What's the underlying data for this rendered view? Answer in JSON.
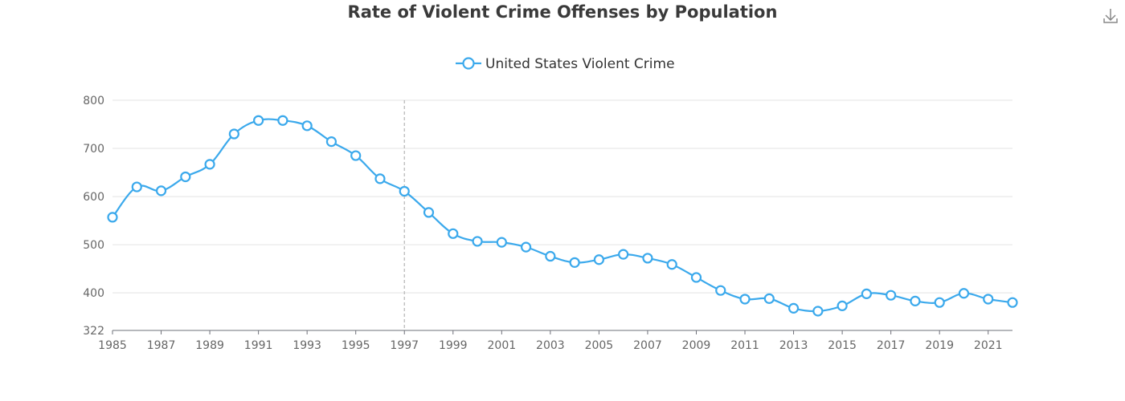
{
  "colors": {
    "series": "#3ba9ec",
    "download_icon": "#888888"
  },
  "toolbox": {
    "download_icon": "download-icon"
  },
  "chart_data": {
    "type": "line",
    "title": "Rate of Violent Crime Offenses by Population",
    "xlabel": "",
    "ylabel": "",
    "x": [
      1985,
      1986,
      1987,
      1988,
      1989,
      1990,
      1991,
      1992,
      1993,
      1994,
      1995,
      1996,
      1997,
      1998,
      1999,
      2000,
      2001,
      2002,
      2003,
      2004,
      2005,
      2006,
      2007,
      2008,
      2009,
      2010,
      2011,
      2012,
      2013,
      2014,
      2015,
      2016,
      2017,
      2018,
      2019,
      2020,
      2021,
      2022
    ],
    "x_tick_labels": [
      "1985",
      "1987",
      "1989",
      "1991",
      "1993",
      "1995",
      "1997",
      "1999",
      "2001",
      "2003",
      "2005",
      "2007",
      "2009",
      "2011",
      "2013",
      "2015",
      "2017",
      "2019",
      "2021"
    ],
    "y_tick_labels": [
      "322",
      "400",
      "500",
      "600",
      "700",
      "800"
    ],
    "ylim": [
      322,
      800
    ],
    "grid": true,
    "legend_position": "top-center",
    "highlighted_x": 1997,
    "series": [
      {
        "name": "United States Violent Crime",
        "values": [
          557,
          620,
          612,
          641,
          667,
          730,
          758,
          758,
          747,
          714,
          685,
          637,
          611,
          567,
          523,
          507,
          505,
          495,
          476,
          463,
          469,
          480,
          472,
          459,
          432,
          405,
          387,
          388,
          368,
          362,
          373,
          398,
          395,
          383,
          380,
          399,
          387,
          380
        ]
      }
    ]
  }
}
